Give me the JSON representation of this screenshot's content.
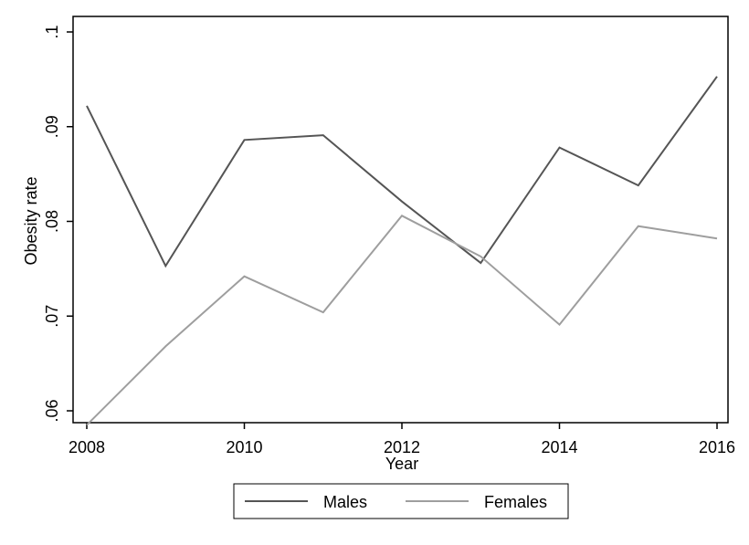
{
  "chart_data": {
    "type": "line",
    "xlabel": "Year",
    "ylabel": "Obesity rate",
    "xlim": [
      2008,
      2016
    ],
    "ylim": [
      0.0575,
      0.1
    ],
    "x_ticks": [
      2008,
      2010,
      2012,
      2014,
      2016
    ],
    "x_tick_labels": [
      "2008",
      "2010",
      "2012",
      "2014",
      "2016"
    ],
    "y_ticks": [
      0.06,
      0.07,
      0.08,
      0.09,
      0.1
    ],
    "y_tick_labels": [
      ".06",
      ".07",
      ".08",
      ".09",
      ".1"
    ],
    "grid": false,
    "legend_position": "bottom",
    "x": [
      2008,
      2009,
      2010,
      2011,
      2012,
      2013,
      2014,
      2015,
      2016
    ],
    "series": [
      {
        "name": "Males",
        "color": "#555555",
        "values": [
          0.0922,
          0.0753,
          0.0886,
          0.0891,
          0.0821,
          0.0756,
          0.0878,
          0.0838,
          0.0953
        ]
      },
      {
        "name": "Females",
        "color": "#9e9e9e",
        "values": [
          0.0585,
          0.0668,
          0.0742,
          0.0704,
          0.0806,
          0.0763,
          0.0691,
          0.0795,
          0.0782
        ]
      }
    ]
  }
}
